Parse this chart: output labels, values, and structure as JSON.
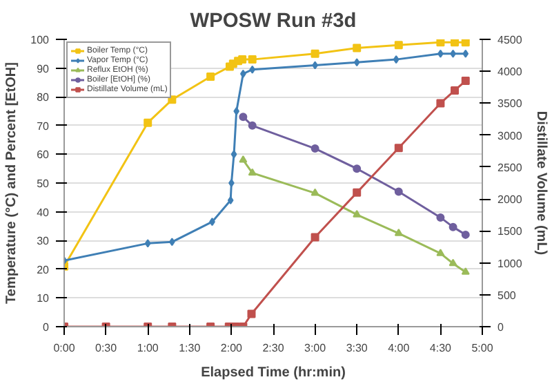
{
  "chart_data": {
    "type": "line",
    "title": "WPOSW Run #3d",
    "xlabel": "Elapsed Time (hr:min)",
    "ylabel": "Temperature (°C) and Percent [EtOH]",
    "y2label": "Distillate Volume (mL)",
    "xlim": [
      0,
      5
    ],
    "xticks": [
      {
        "value": 0,
        "label": "0:00"
      },
      {
        "value": 0.5,
        "label": "0:30"
      },
      {
        "value": 1,
        "label": "1:00"
      },
      {
        "value": 1.5,
        "label": "1:30"
      },
      {
        "value": 2,
        "label": "2:00"
      },
      {
        "value": 2.5,
        "label": "2:30"
      },
      {
        "value": 3,
        "label": "3:00"
      },
      {
        "value": 3.5,
        "label": "3:30"
      },
      {
        "value": 4,
        "label": "4:00"
      },
      {
        "value": 4.5,
        "label": "4:30"
      },
      {
        "value": 5,
        "label": "5:00"
      }
    ],
    "ylim": [
      0,
      100
    ],
    "yticks": [
      0,
      10,
      20,
      30,
      40,
      50,
      60,
      70,
      80,
      90,
      100
    ],
    "y2lim": [
      0,
      4500
    ],
    "y2ticks": [
      0,
      500,
      1000,
      1500,
      2000,
      2500,
      3000,
      3500,
      4000,
      4500
    ],
    "grid": "y",
    "legend": "top left",
    "series": [
      {
        "name": "Boiler Temp (°C)",
        "color": "#f2c314",
        "marker": "square",
        "x": [
          0,
          1.0,
          1.29,
          1.75,
          1.98,
          2.02,
          2.08,
          2.13,
          2.25,
          3.0,
          3.5,
          4.0,
          4.5,
          4.67,
          4.8
        ],
        "values": [
          21,
          71,
          79,
          87,
          90.5,
          91.5,
          92.5,
          93,
          93,
          95,
          97,
          98,
          99,
          99,
          99
        ]
      },
      {
        "name": "Vapor Temp (°C)",
        "color": "#3f7fb5",
        "marker": "diamond",
        "x": [
          0,
          1.0,
          1.29,
          1.77,
          1.99,
          2.0,
          2.03,
          2.06,
          2.14,
          2.25,
          3.0,
          3.5,
          3.97,
          4.5,
          4.65,
          4.8
        ],
        "values": [
          23,
          29,
          29.5,
          36.5,
          44,
          50,
          60,
          75,
          88,
          89.5,
          91,
          92,
          93,
          95,
          95,
          95
        ]
      },
      {
        "name": "Reflux EtOH (%)",
        "color": "#9bbb59",
        "marker": "triangle",
        "x": [
          2.14,
          2.25,
          3.0,
          3.5,
          4.0,
          4.5,
          4.65,
          4.8
        ],
        "values": [
          58,
          53.5,
          46.5,
          39,
          32.5,
          25.5,
          22,
          19
        ]
      },
      {
        "name": "Boiler [EtOH] (%)",
        "color": "#6f5f9e",
        "marker": "circle",
        "x": [
          2.14,
          2.25,
          3.0,
          3.5,
          4.0,
          4.5,
          4.65,
          4.8
        ],
        "values": [
          73,
          70,
          62,
          55,
          47,
          38,
          34.7,
          32
        ]
      },
      {
        "name": "Distillate Volume (mL)",
        "color": "#c0504d",
        "marker": "square",
        "axis": "y2",
        "x": [
          0,
          0.5,
          1.0,
          1.29,
          1.75,
          1.97,
          2.0,
          2.05,
          2.14,
          2.24,
          3.0,
          3.5,
          4.0,
          4.5,
          4.67,
          4.8
        ],
        "values": [
          0,
          0,
          0,
          0,
          0,
          0,
          0,
          0,
          0,
          200,
          1400,
          2100,
          2800,
          3500,
          3700,
          3850
        ]
      }
    ]
  }
}
